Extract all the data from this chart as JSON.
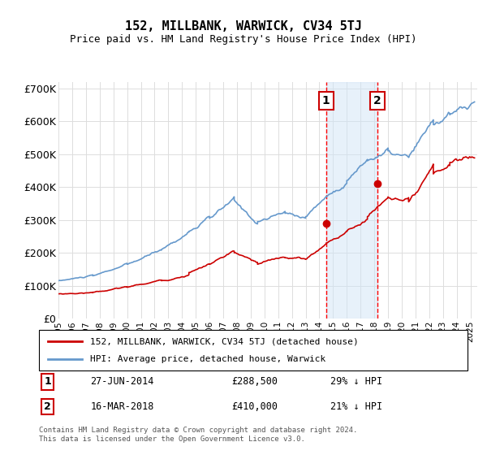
{
  "title": "152, MILLBANK, WARWICK, CV34 5TJ",
  "subtitle": "Price paid vs. HM Land Registry's House Price Index (HPI)",
  "sale1_date": "27-JUN-2014",
  "sale1_price": 288500,
  "sale1_label": "29% ↓ HPI",
  "sale2_date": "16-MAR-2018",
  "sale2_price": 410000,
  "sale2_label": "21% ↓ HPI",
  "legend_line1": "152, MILLBANK, WARWICK, CV34 5TJ (detached house)",
  "legend_line2": "HPI: Average price, detached house, Warwick",
  "footer": "Contains HM Land Registry data © Crown copyright and database right 2024.\nThis data is licensed under the Open Government Licence v3.0.",
  "hpi_color": "#6699cc",
  "price_color": "#cc0000",
  "sale_marker_color": "#cc0000",
  "vline_color": "#ff0000",
  "shade_color": "#d0e4f7",
  "annotation_box_color": "#cc0000",
  "ylim": [
    0,
    720000
  ],
  "yticks": [
    0,
    100000,
    200000,
    300000,
    400000,
    500000,
    600000,
    700000
  ],
  "ytick_labels": [
    "£0",
    "£100K",
    "£200K",
    "£300K",
    "£400K",
    "£500K",
    "£600K",
    "£700K"
  ],
  "xstart": 1995.0,
  "xend": 2025.5,
  "sale1_x": 2014.49,
  "sale2_x": 2018.21
}
